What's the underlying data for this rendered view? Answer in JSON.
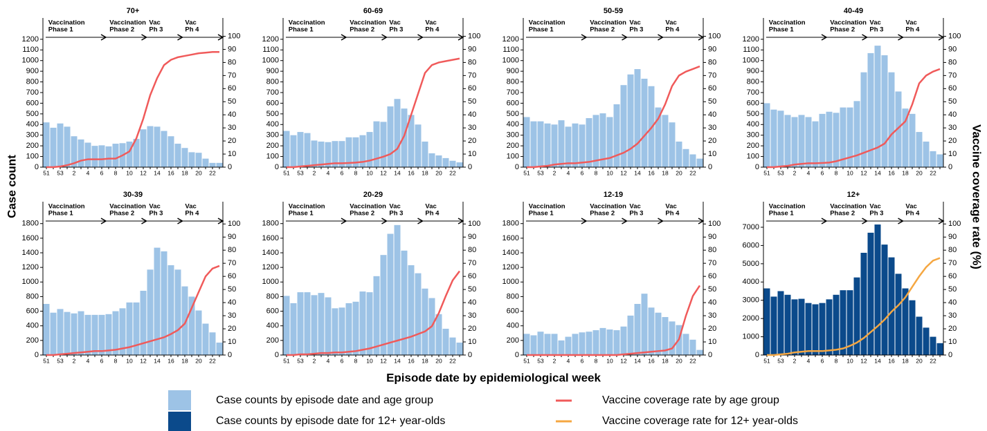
{
  "y_label": "Case count",
  "y2_label": "Vaccine coverage rate (%)",
  "x_label": "Episode date by epidemiological week",
  "phases": [
    [
      "Vaccination",
      "Phase 1"
    ],
    [
      "Vaccination",
      "Phase 2"
    ],
    [
      "Vac",
      "Ph 3"
    ],
    [
      "Vac",
      "Ph 4"
    ]
  ],
  "chart_data": [
    {
      "type": "bar_line",
      "title": "70+",
      "categories": [
        "51",
        null,
        "53",
        null,
        "2",
        null,
        "4",
        null,
        "6",
        null,
        "8",
        null,
        "10",
        null,
        "12",
        null,
        "14",
        null,
        "16",
        null,
        "18",
        null,
        "20",
        null,
        "22",
        null
      ],
      "series": [
        {
          "name": "Case counts by episode date and age group",
          "color": "#9dc3e6",
          "values": [
            420,
            370,
            410,
            380,
            290,
            260,
            230,
            200,
            205,
            195,
            220,
            225,
            240,
            265,
            355,
            385,
            380,
            340,
            290,
            220,
            180,
            140,
            135,
            80,
            40,
            40
          ]
        },
        {
          "name": "Vaccine coverage rate by age group",
          "color": "#f05a5a",
          "axis": "y2",
          "values": [
            0,
            0,
            0.5,
            1.5,
            3,
            5,
            6,
            6,
            6,
            6.5,
            6.5,
            9,
            12,
            22,
            37,
            55,
            68,
            78,
            82,
            84,
            85,
            86,
            87,
            87.5,
            88,
            88
          ]
        }
      ],
      "ylim": [
        0,
        1400
      ],
      "yticks": [
        0,
        100,
        200,
        300,
        400,
        500,
        600,
        700,
        800,
        900,
        1000,
        1100,
        1200
      ],
      "y2lim": [
        0,
        114
      ],
      "y2ticks": [
        0,
        10,
        20,
        30,
        40,
        50,
        60,
        70,
        80,
        90,
        100
      ]
    },
    {
      "type": "bar_line",
      "title": "60-69",
      "categories": [
        "51",
        null,
        "53",
        null,
        "2",
        null,
        "4",
        null,
        "6",
        null,
        "8",
        null,
        "10",
        null,
        "12",
        null,
        "14",
        null,
        "16",
        null,
        "18",
        null,
        "20",
        null,
        "22",
        null
      ],
      "series": [
        {
          "name": "Case counts by episode date and age group",
          "color": "#9dc3e6",
          "values": [
            340,
            300,
            330,
            320,
            250,
            240,
            235,
            245,
            245,
            280,
            280,
            300,
            330,
            430,
            425,
            570,
            640,
            550,
            490,
            400,
            240,
            130,
            110,
            85,
            60,
            45
          ]
        },
        {
          "name": "Vaccine coverage rate by age group",
          "color": "#f05a5a",
          "axis": "y2",
          "values": [
            0,
            0,
            0.5,
            1,
            1.5,
            2,
            2.5,
            3,
            3,
            3.2,
            3.5,
            4,
            5,
            6.5,
            8,
            10,
            14,
            24,
            40,
            56,
            72,
            78,
            80,
            81,
            82,
            83
          ]
        }
      ],
      "ylim": [
        0,
        1400
      ],
      "yticks": [
        0,
        100,
        200,
        300,
        400,
        500,
        600,
        700,
        800,
        900,
        1000,
        1100,
        1200
      ],
      "y2lim": [
        0,
        114
      ],
      "y2ticks": [
        0,
        10,
        20,
        30,
        40,
        50,
        60,
        70,
        80,
        90,
        100
      ]
    },
    {
      "type": "bar_line",
      "title": "50-59",
      "categories": [
        "51",
        null,
        "53",
        null,
        "2",
        null,
        "4",
        null,
        "6",
        null,
        "8",
        null,
        "10",
        null,
        "12",
        null,
        "14",
        null,
        "16",
        null,
        "18",
        null,
        "20",
        null,
        "22",
        null
      ],
      "series": [
        {
          "name": "Case counts by episode date and age group",
          "color": "#9dc3e6",
          "values": [
            470,
            430,
            430,
            410,
            400,
            440,
            380,
            410,
            400,
            460,
            490,
            505,
            470,
            590,
            770,
            870,
            920,
            830,
            760,
            560,
            490,
            420,
            240,
            170,
            120,
            80
          ]
        },
        {
          "name": "Vaccine coverage rate by age group",
          "color": "#f05a5a",
          "axis": "y2",
          "values": [
            0,
            0,
            0.5,
            1,
            2,
            2.5,
            3,
            3,
            3.5,
            4,
            5,
            6,
            7,
            9,
            11,
            14,
            18,
            24,
            30,
            37,
            48,
            62,
            70,
            73,
            75,
            77
          ]
        }
      ],
      "ylim": [
        0,
        1400
      ],
      "yticks": [
        0,
        100,
        200,
        300,
        400,
        500,
        600,
        700,
        800,
        900,
        1000,
        1100,
        1200
      ],
      "y2lim": [
        0,
        114
      ],
      "y2ticks": [
        0,
        10,
        20,
        30,
        40,
        50,
        60,
        70,
        80,
        90,
        100
      ]
    },
    {
      "type": "bar_line",
      "title": "40-49",
      "categories": [
        "51",
        null,
        "53",
        null,
        "2",
        null,
        "4",
        null,
        "6",
        null,
        "8",
        null,
        "10",
        null,
        "12",
        null,
        "14",
        null,
        "16",
        null,
        "18",
        null,
        "20",
        null,
        "22",
        null
      ],
      "series": [
        {
          "name": "Case counts by episode date and age group",
          "color": "#9dc3e6",
          "values": [
            600,
            540,
            530,
            490,
            470,
            490,
            470,
            430,
            500,
            520,
            510,
            560,
            560,
            620,
            890,
            1070,
            1140,
            1050,
            890,
            710,
            550,
            500,
            330,
            240,
            150,
            120
          ]
        },
        {
          "name": "Vaccine coverage rate by age group",
          "color": "#f05a5a",
          "axis": "y2",
          "values": [
            0,
            0,
            0.5,
            1,
            2,
            2.5,
            3,
            3,
            3.2,
            3.5,
            4.5,
            6,
            7.5,
            9,
            11,
            13,
            15,
            18,
            25,
            30,
            35,
            48,
            64,
            70,
            73,
            75
          ]
        }
      ],
      "ylim": [
        0,
        1400
      ],
      "yticks": [
        0,
        100,
        200,
        300,
        400,
        500,
        600,
        700,
        800,
        900,
        1000,
        1100,
        1200
      ],
      "y2lim": [
        0,
        114
      ],
      "y2ticks": [
        0,
        10,
        20,
        30,
        40,
        50,
        60,
        70,
        80,
        90,
        100
      ]
    },
    {
      "type": "bar_line",
      "title": "30-39",
      "categories": [
        "51",
        null,
        "53",
        null,
        "2",
        null,
        "4",
        null,
        "6",
        null,
        "8",
        null,
        "10",
        null,
        "12",
        null,
        "14",
        null,
        "16",
        null,
        "18",
        null,
        "20",
        null,
        "22",
        null
      ],
      "series": [
        {
          "name": "Case counts by episode date and age group",
          "color": "#9dc3e6",
          "values": [
            700,
            580,
            630,
            590,
            570,
            600,
            550,
            550,
            550,
            560,
            600,
            640,
            720,
            720,
            880,
            1170,
            1470,
            1420,
            1230,
            1170,
            940,
            800,
            610,
            430,
            310,
            170
          ]
        },
        {
          "name": "Vaccine coverage rate by age group",
          "color": "#f05a5a",
          "axis": "y2",
          "values": [
            0,
            0,
            0.5,
            1,
            1.5,
            2,
            2.5,
            3,
            3,
            3.5,
            4,
            5,
            6,
            7.5,
            9,
            10.5,
            12,
            13.5,
            16,
            19,
            24,
            36,
            48,
            60,
            66,
            68
          ]
        }
      ],
      "ylim": [
        0,
        2100
      ],
      "yticks": [
        0,
        200,
        400,
        600,
        800,
        1000,
        1200,
        1400,
        1600,
        1800
      ],
      "y2lim": [
        0,
        117
      ],
      "y2ticks": [
        0,
        10,
        20,
        30,
        40,
        50,
        60,
        70,
        80,
        90,
        100
      ]
    },
    {
      "type": "bar_line",
      "title": "20-29",
      "categories": [
        "51",
        null,
        "53",
        null,
        "2",
        null,
        "4",
        null,
        "6",
        null,
        "8",
        null,
        "10",
        null,
        "12",
        null,
        "14",
        null,
        "16",
        null,
        "18",
        null,
        "20",
        null,
        "22",
        null
      ],
      "series": [
        {
          "name": "Case counts by episode date and age group",
          "color": "#9dc3e6",
          "values": [
            810,
            710,
            860,
            860,
            820,
            850,
            790,
            640,
            650,
            710,
            730,
            870,
            860,
            1080,
            1370,
            1660,
            1780,
            1430,
            1230,
            1120,
            910,
            780,
            560,
            360,
            240,
            170
          ]
        },
        {
          "name": "Vaccine coverage rate by age group",
          "color": "#f05a5a",
          "axis": "y2",
          "values": [
            0,
            0,
            0.5,
            0.5,
            1,
            1.5,
            1.5,
            2,
            2,
            2.5,
            3,
            4,
            5,
            6.5,
            8,
            9.5,
            11,
            12.5,
            14,
            16,
            18,
            22,
            32,
            45,
            57,
            64
          ]
        }
      ],
      "ylim": [
        0,
        2100
      ],
      "yticks": [
        0,
        200,
        400,
        600,
        800,
        1000,
        1200,
        1400,
        1600,
        1800
      ],
      "y2lim": [
        0,
        117
      ],
      "y2ticks": [
        0,
        10,
        20,
        30,
        40,
        50,
        60,
        70,
        80,
        90,
        100
      ]
    },
    {
      "type": "bar_line",
      "title": "12-19",
      "categories": [
        "51",
        null,
        "53",
        null,
        "2",
        null,
        "4",
        null,
        "6",
        null,
        "8",
        null,
        "10",
        null,
        "12",
        null,
        "14",
        null,
        "16",
        null,
        "18",
        null,
        "20",
        null,
        "22",
        null
      ],
      "series": [
        {
          "name": "Case counts by episode date and age group",
          "color": "#9dc3e6",
          "values": [
            290,
            270,
            320,
            290,
            290,
            200,
            250,
            290,
            310,
            320,
            340,
            370,
            350,
            340,
            390,
            540,
            700,
            840,
            650,
            580,
            520,
            460,
            410,
            290,
            210,
            70
          ]
        },
        {
          "name": "Vaccine coverage rate by age group",
          "color": "#f05a5a",
          "axis": "y2",
          "values": [
            0,
            0,
            0,
            0,
            0,
            0,
            0,
            0,
            0,
            0,
            0,
            0,
            0,
            0,
            0.5,
            1,
            1.5,
            2,
            2.5,
            3,
            3.5,
            5,
            12,
            30,
            45,
            53
          ]
        }
      ],
      "ylim": [
        0,
        2100
      ],
      "yticks": [
        0,
        200,
        400,
        600,
        800,
        1000,
        1200,
        1400,
        1600,
        1800
      ],
      "y2lim": [
        0,
        117
      ],
      "y2ticks": [
        0,
        10,
        20,
        30,
        40,
        50,
        60,
        70,
        80,
        90,
        100
      ]
    },
    {
      "type": "bar_line",
      "title": "12+",
      "categories": [
        "51",
        null,
        "53",
        null,
        "2",
        null,
        "4",
        null,
        "6",
        null,
        "8",
        null,
        "10",
        null,
        "12",
        null,
        "14",
        null,
        "16",
        null,
        "18",
        null,
        "20",
        null,
        "22",
        null
      ],
      "series": [
        {
          "name": "Case counts by episode date for 12+ year-olds",
          "color": "#0b4a8b",
          "values": [
            3650,
            3200,
            3500,
            3300,
            3050,
            3080,
            2850,
            2780,
            2850,
            3050,
            3300,
            3550,
            3550,
            4250,
            5600,
            6700,
            7150,
            6050,
            5350,
            4450,
            3650,
            3000,
            2100,
            1500,
            1000,
            650
          ]
        },
        {
          "name": "Vaccine coverage rate for 12+ year-olds",
          "color": "#f5a742",
          "axis": "y2",
          "values": [
            0,
            0,
            0.5,
            1,
            2,
            2.5,
            3,
            3,
            3,
            3.5,
            4,
            5,
            7,
            9.5,
            13,
            17.5,
            22,
            27,
            33,
            38,
            44,
            52,
            60,
            67,
            72,
            74
          ]
        }
      ],
      "ylim": [
        0,
        8400
      ],
      "yticks": [
        0,
        1000,
        2000,
        3000,
        4000,
        5000,
        6000,
        7000
      ],
      "y2lim": [
        0,
        117
      ],
      "y2ticks": [
        0,
        10,
        20,
        30,
        40,
        50,
        60,
        70,
        80,
        90,
        100
      ]
    }
  ]
}
